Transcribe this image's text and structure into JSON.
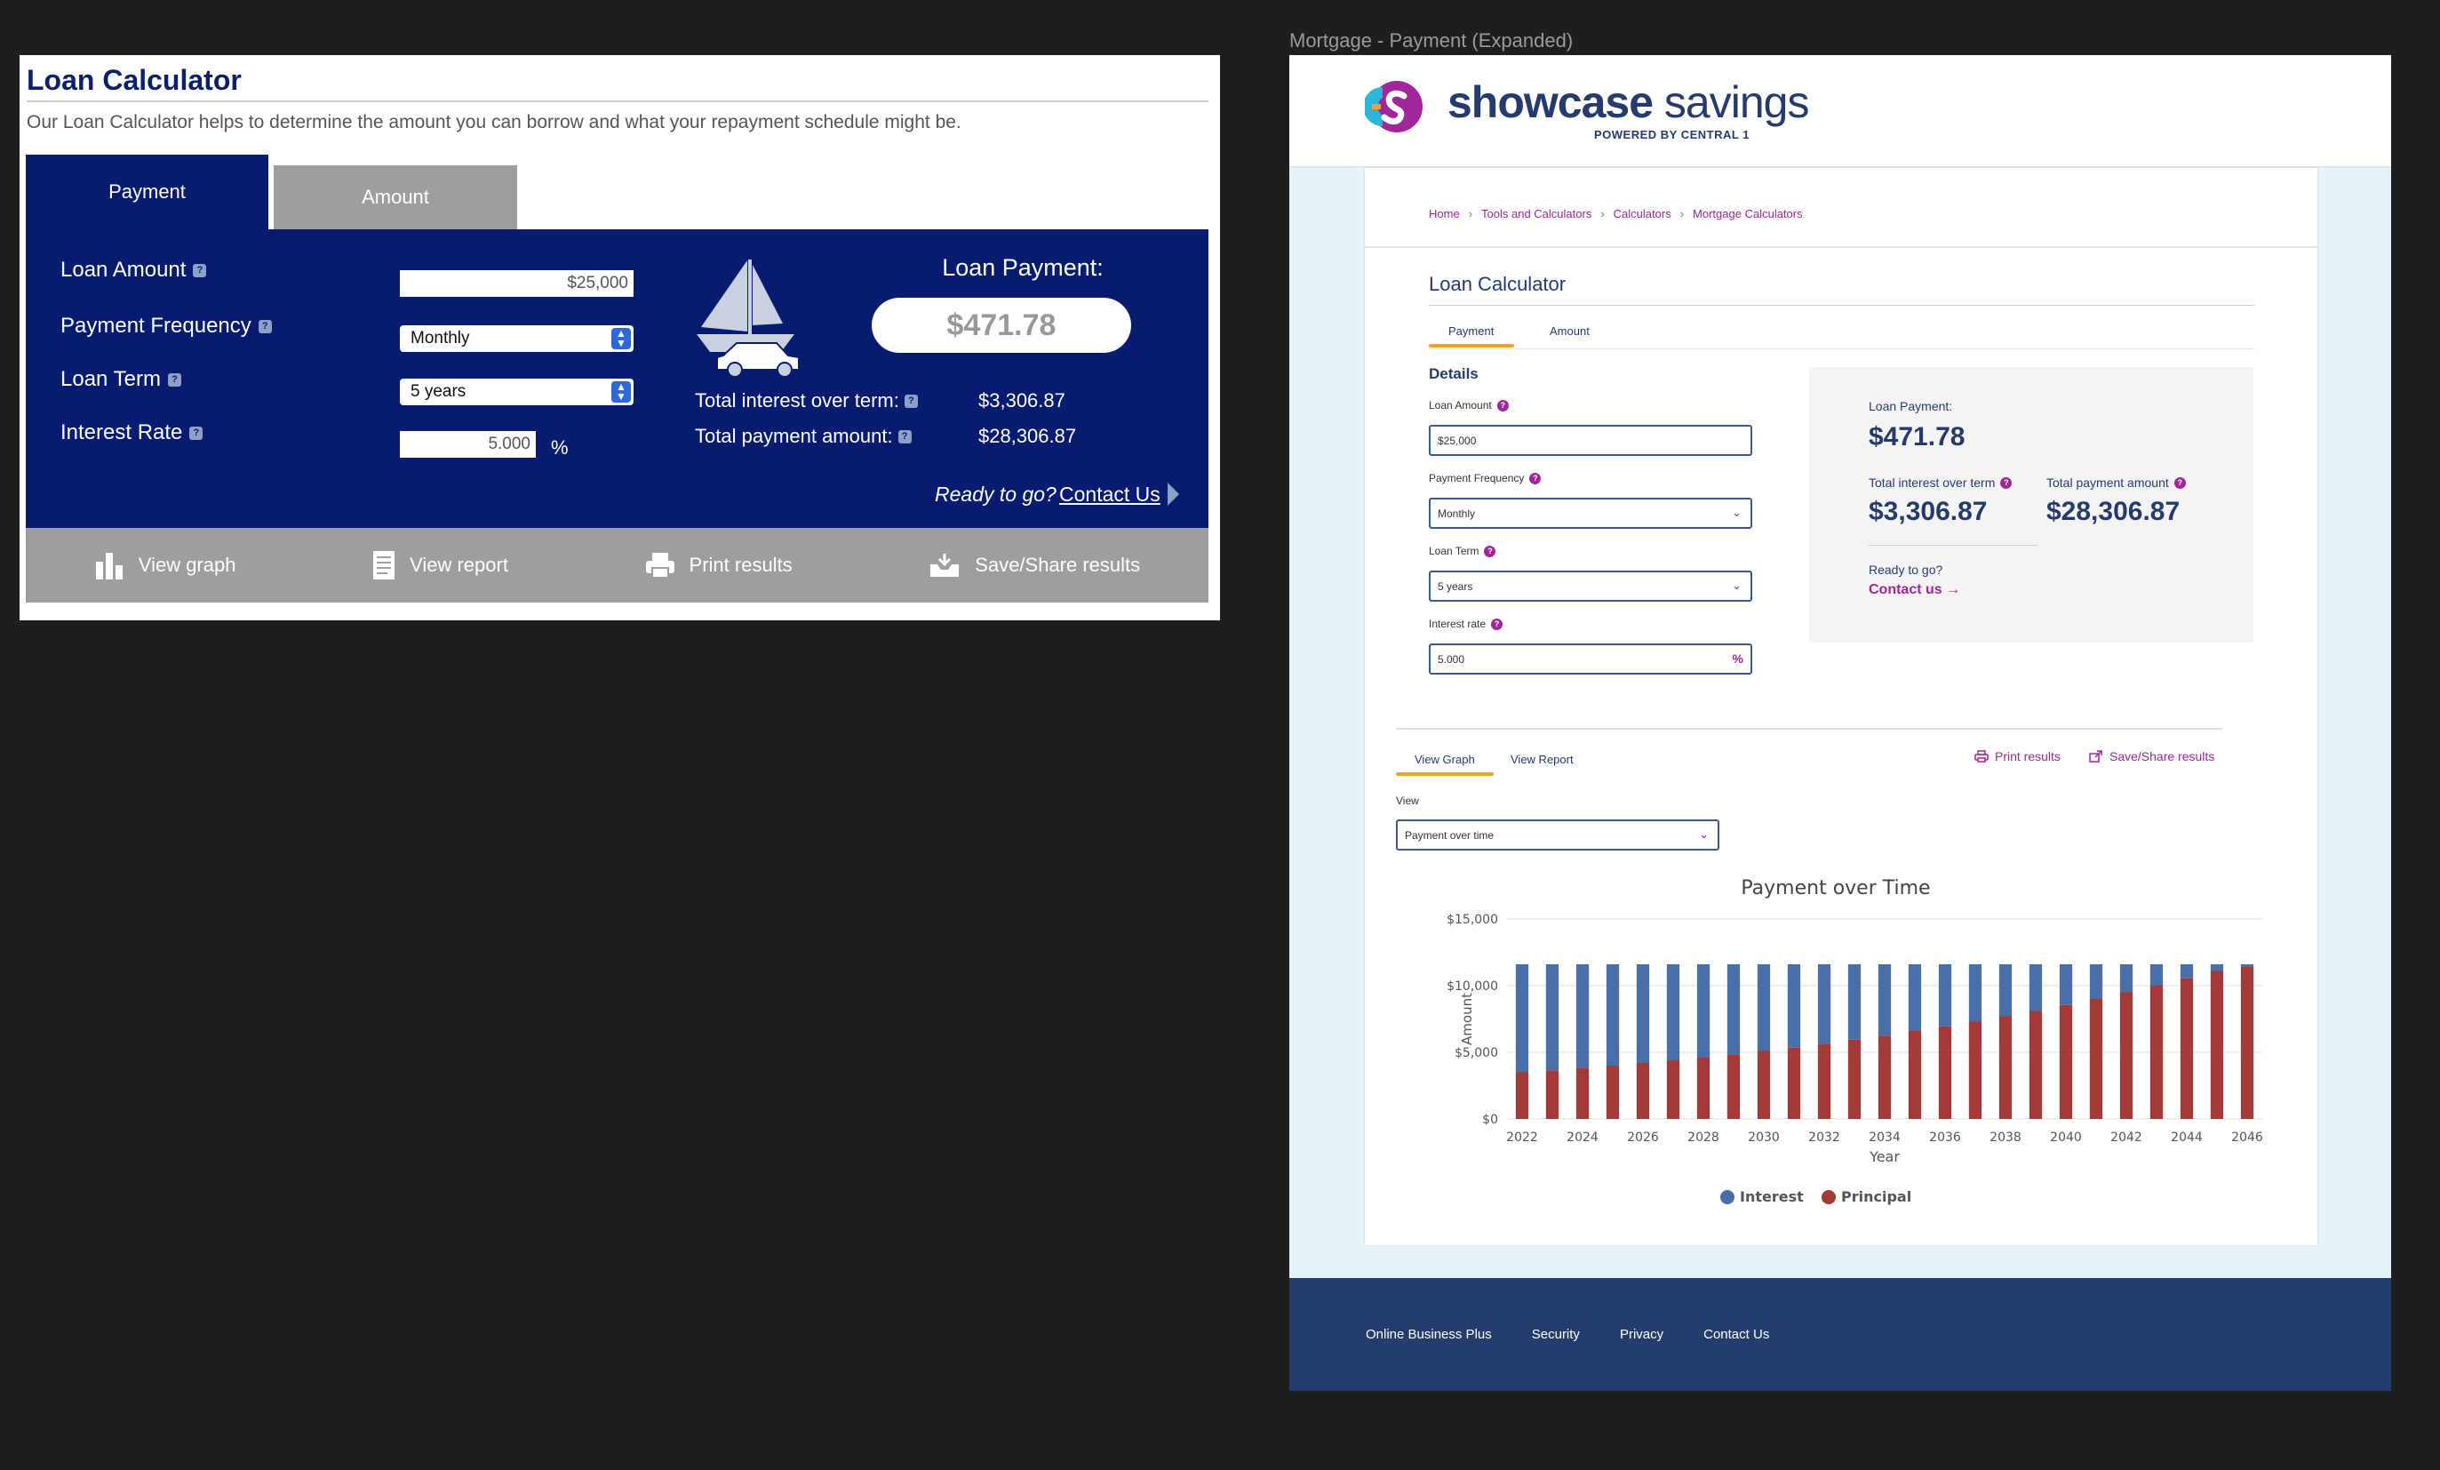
{
  "old": {
    "title": "Loan Calculator",
    "intro": "Our Loan Calculator helps to determine the amount you can borrow and what your repayment schedule might be.",
    "tabs": [
      "Payment",
      "Amount"
    ],
    "fields": {
      "loan_amount_label": "Loan Amount",
      "loan_amount_value": "$25,000",
      "frequency_label": "Payment Frequency",
      "frequency_value": "Monthly",
      "term_label": "Loan Term",
      "term_value": "5 years",
      "rate_label": "Interest Rate",
      "rate_value": "5.000",
      "rate_unit": "%"
    },
    "result": {
      "payment_label": "Loan Payment:",
      "payment_value": "$471.78",
      "interest_label": "Total interest over term:",
      "interest_value": "$3,306.87",
      "total_label": "Total payment amount:",
      "total_value": "$28,306.87",
      "ready": "Ready to go?",
      "contact": "Contact Us"
    },
    "actions": [
      "View graph",
      "View report",
      "Print results",
      "Save/Share results"
    ]
  },
  "new": {
    "frame_label": "Mortgage - Payment (Expanded)",
    "brand_name": "showcase",
    "brand_suffix": " savings",
    "powered": "POWERED BY CENTRAL 1",
    "breadcrumbs": [
      "Home",
      "Tools and Calculators",
      "Calculators",
      "Mortgage Calculators"
    ],
    "title": "Loan Calculator",
    "tabs": [
      "Payment",
      "Amount"
    ],
    "details": "Details",
    "fields": {
      "loan_amount_label": "Loan Amount",
      "loan_amount_value": "$25,000",
      "frequency_label": "Payment Frequency",
      "frequency_value": "Monthly",
      "term_label": "Loan Term",
      "term_value": "5 years",
      "rate_label": "Interest rate",
      "rate_value": "5.000",
      "rate_unit": "%"
    },
    "result": {
      "payment_label": "Loan Payment:",
      "payment_value": "$471.78",
      "interest_label": "Total interest over term",
      "interest_value": "$3,306.87",
      "total_label": "Total payment amount",
      "total_value": "$28,306.87",
      "ready": "Ready to go?",
      "contact": "Contact us →"
    },
    "graph_tabs": [
      "View Graph",
      "View Report"
    ],
    "print": "Print results",
    "share": "Save/Share results",
    "view_label": "View",
    "view_value": "Payment over time",
    "footer": [
      "Online Business Plus",
      "Security",
      "Privacy",
      "Contact Us"
    ]
  },
  "colors": {
    "navy": "#071c70",
    "brand": "#253a6e",
    "accent": "#a0269c",
    "interest": "#4a6ea8",
    "principal": "#a43a37"
  },
  "chart_data": {
    "type": "bar",
    "title": "Payment over Time",
    "xlabel": "Year",
    "ylabel": "Amount",
    "ylim": [
      0,
      15000
    ],
    "yticks": [
      "$0",
      "$5,000",
      "$10,000",
      "$15,000"
    ],
    "xtick_labels": [
      "2022",
      "2024",
      "2026",
      "2028",
      "2030",
      "2032",
      "2034",
      "2036",
      "2038",
      "2040",
      "2042",
      "2044",
      "2046"
    ],
    "categories": [
      2022,
      2023,
      2024,
      2025,
      2026,
      2027,
      2028,
      2029,
      2030,
      2031,
      2032,
      2033,
      2034,
      2035,
      2036,
      2037,
      2038,
      2039,
      2040,
      2041,
      2042,
      2043,
      2044,
      2045,
      2046
    ],
    "stacked": true,
    "series": [
      {
        "name": "Principal",
        "color": "#a43a37",
        "values": [
          3500,
          3650,
          3850,
          4000,
          4200,
          4400,
          4600,
          4850,
          5100,
          5350,
          5650,
          5950,
          6250,
          6600,
          6950,
          7300,
          7700,
          8100,
          8550,
          9000,
          9500,
          10000,
          10550,
          11100,
          11400
        ]
      },
      {
        "name": "Interest",
        "color": "#4a6ea8",
        "values": [
          8100,
          7950,
          7750,
          7600,
          7400,
          7200,
          7000,
          6750,
          6500,
          6250,
          5950,
          5650,
          5350,
          5000,
          4650,
          4300,
          3900,
          3500,
          3050,
          2600,
          2100,
          1600,
          1050,
          500,
          200
        ]
      }
    ],
    "legend": "bottom"
  }
}
